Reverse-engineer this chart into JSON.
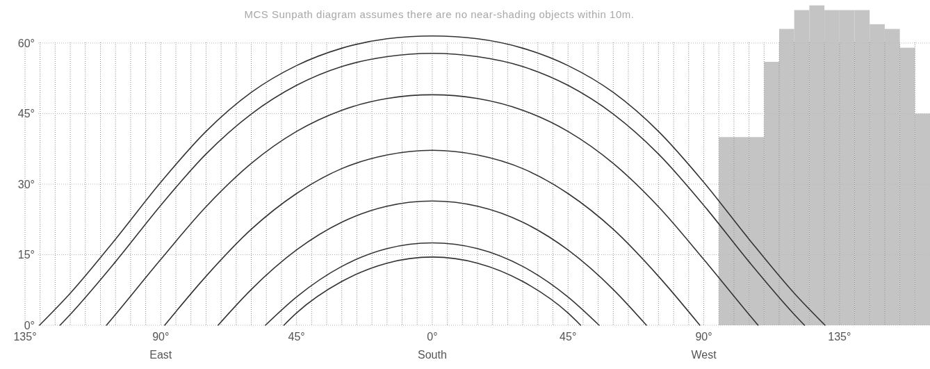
{
  "chart_data": {
    "type": "line",
    "title": "MCS Sunpath diagram assumes there are no near-shading objects within 10m.",
    "xlim": [
      -135,
      165
    ],
    "ylim": [
      0,
      69
    ],
    "xticks": [
      {
        "value": -135,
        "label": "135°"
      },
      {
        "value": -130,
        "label": null
      },
      {
        "value": -125,
        "label": null
      },
      {
        "value": -120,
        "label": null
      },
      {
        "value": -115,
        "label": null
      },
      {
        "value": -110,
        "label": null
      },
      {
        "value": -105,
        "label": null
      },
      {
        "value": -100,
        "label": null
      },
      {
        "value": -95,
        "label": null
      },
      {
        "value": -90,
        "label": "90°\nEast"
      },
      {
        "value": -85,
        "label": null
      },
      {
        "value": -80,
        "label": null
      },
      {
        "value": -75,
        "label": null
      },
      {
        "value": -70,
        "label": null
      },
      {
        "value": -65,
        "label": null
      },
      {
        "value": -60,
        "label": null
      },
      {
        "value": -55,
        "label": null
      },
      {
        "value": -50,
        "label": null
      },
      {
        "value": -45,
        "label": "45°"
      },
      {
        "value": -40,
        "label": null
      },
      {
        "value": -35,
        "label": null
      },
      {
        "value": -30,
        "label": null
      },
      {
        "value": -25,
        "label": null
      },
      {
        "value": -20,
        "label": null
      },
      {
        "value": -15,
        "label": null
      },
      {
        "value": -10,
        "label": null
      },
      {
        "value": -5,
        "label": null
      },
      {
        "value": 0,
        "label": "0°\nSouth"
      },
      {
        "value": 5,
        "label": null
      },
      {
        "value": 10,
        "label": null
      },
      {
        "value": 15,
        "label": null
      },
      {
        "value": 20,
        "label": null
      },
      {
        "value": 25,
        "label": null
      },
      {
        "value": 30,
        "label": null
      },
      {
        "value": 35,
        "label": null
      },
      {
        "value": 40,
        "label": null
      },
      {
        "value": 45,
        "label": "45°"
      },
      {
        "value": 50,
        "label": null
      },
      {
        "value": 55,
        "label": null
      },
      {
        "value": 60,
        "label": null
      },
      {
        "value": 65,
        "label": null
      },
      {
        "value": 70,
        "label": null
      },
      {
        "value": 75,
        "label": null
      },
      {
        "value": 80,
        "label": null
      },
      {
        "value": 85,
        "label": null
      },
      {
        "value": 90,
        "label": "90°\nWest"
      },
      {
        "value": 95,
        "label": null
      },
      {
        "value": 100,
        "label": null
      },
      {
        "value": 105,
        "label": null
      },
      {
        "value": 110,
        "label": null
      },
      {
        "value": 115,
        "label": null
      },
      {
        "value": 120,
        "label": null
      },
      {
        "value": 125,
        "label": null
      },
      {
        "value": 130,
        "label": null
      },
      {
        "value": 135,
        "label": "135°"
      },
      {
        "value": 140,
        "label": null
      },
      {
        "value": 145,
        "label": null
      },
      {
        "value": 150,
        "label": null
      },
      {
        "value": 155,
        "label": null
      },
      {
        "value": 160,
        "label": null
      }
    ],
    "yticks": [
      {
        "value": 0,
        "label": "0°"
      },
      {
        "value": 15,
        "label": "15°"
      },
      {
        "value": 30,
        "label": "30°"
      },
      {
        "value": 45,
        "label": "45°"
      },
      {
        "value": 60,
        "label": "60°"
      }
    ],
    "grid": true,
    "series": [
      {
        "type": "histogram",
        "color": "#c4c4c4",
        "bins": [
          95,
          100,
          105,
          110,
          115,
          120,
          125,
          130,
          135,
          140,
          145,
          150,
          155,
          160,
          165
        ],
        "values": [
          40,
          40,
          40,
          56,
          63,
          67,
          68,
          67,
          67,
          67,
          64,
          63,
          59,
          45
        ]
      },
      {
        "color": "#333333",
        "x": [
          -130.2,
          -120,
          -105,
          -90,
          -75,
          -60,
          -45,
          -30,
          -15,
          0,
          15,
          30,
          45,
          60,
          75,
          90,
          105,
          120,
          130.2
        ],
        "values": [
          0,
          6.8,
          18.3,
          30.4,
          41.2,
          49.5,
          55.2,
          58.9,
          60.9,
          61.5,
          60.9,
          58.9,
          55.2,
          49.5,
          41.2,
          30.4,
          18.3,
          6.8,
          0
        ]
      },
      {
        "color": "#333333",
        "x": [
          -123.4,
          -120,
          -105,
          -90,
          -75,
          -60,
          -45,
          -30,
          -15,
          0,
          15,
          30,
          45,
          60,
          75,
          90,
          105,
          120,
          123.4
        ],
        "values": [
          0,
          2.3,
          13.5,
          25.5,
          36.4,
          44.9,
          51.0,
          55.0,
          57.1,
          57.8,
          57.1,
          55.0,
          51.0,
          44.9,
          36.4,
          25.5,
          13.5,
          2.3,
          0
        ]
      },
      {
        "color": "#333333",
        "x": [
          -108,
          -105,
          -90,
          -75,
          -60,
          -45,
          -30,
          -15,
          0,
          15,
          30,
          45,
          60,
          75,
          90,
          105,
          108
        ],
        "values": [
          0,
          2.3,
          14.0,
          25.2,
          34.4,
          41.2,
          45.7,
          48.2,
          49.0,
          48.2,
          45.7,
          41.2,
          34.4,
          25.2,
          14.0,
          2.3,
          0
        ]
      },
      {
        "color": "#333333",
        "x": [
          -88.7,
          -75,
          -60,
          -45,
          -30,
          -15,
          0,
          15,
          30,
          45,
          60,
          75,
          88.7
        ],
        "values": [
          0,
          10.4,
          20.4,
          28.0,
          33.3,
          36.2,
          37.2,
          36.2,
          33.3,
          28.0,
          20.4,
          10.4,
          0
        ]
      },
      {
        "color": "#333333",
        "x": [
          -71,
          -60,
          -45,
          -30,
          -15,
          0,
          15,
          30,
          45,
          60,
          71
        ],
        "values": [
          0,
          7.6,
          16.0,
          21.9,
          25.3,
          26.4,
          25.3,
          21.9,
          16.0,
          7.6,
          0
        ]
      },
      {
        "color": "#333333",
        "x": [
          -55.3,
          -45,
          -30,
          -15,
          0,
          15,
          30,
          45,
          55.3
        ],
        "values": [
          0,
          6.0,
          12.5,
          16.3,
          17.5,
          16.3,
          12.5,
          6.0,
          0
        ]
      },
      {
        "color": "#333333",
        "x": [
          -49.2,
          -45,
          -30,
          -15,
          0,
          15,
          30,
          45,
          49.2
        ],
        "values": [
          0,
          2.6,
          9.3,
          13.2,
          14.5,
          13.2,
          9.3,
          2.6,
          0
        ]
      }
    ]
  }
}
